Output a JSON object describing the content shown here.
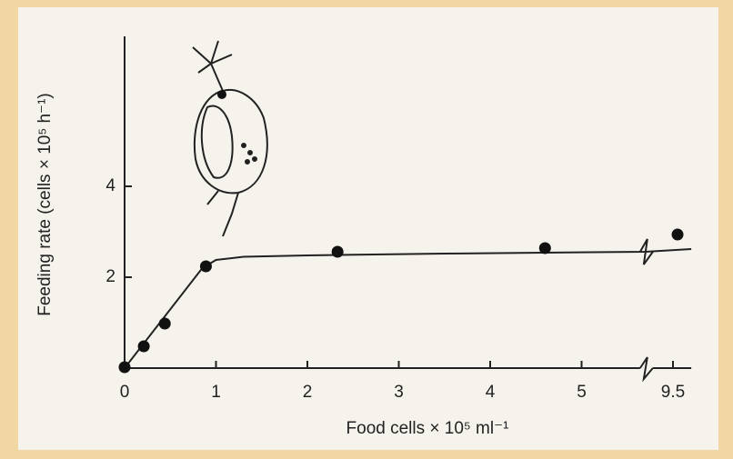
{
  "chart_data": {
    "type": "scatter",
    "x_label": "Food cells × 10⁵ ml⁻¹",
    "y_label": "Feeding rate (cells × 10⁵ h⁻¹)",
    "x": [
      0,
      0.21,
      0.44,
      0.89,
      2.33,
      4.6,
      9.55
    ],
    "values": [
      0.02,
      0.48,
      0.98,
      2.24,
      2.56,
      2.64,
      2.94
    ],
    "color": "#111111",
    "curve": {
      "x": [
        0,
        0.85,
        1.0,
        1.3,
        2.0,
        3.5,
        5.7,
        9.7
      ],
      "y": [
        0,
        2.2,
        2.38,
        2.45,
        2.48,
        2.52,
        2.56,
        2.62
      ]
    },
    "xbreak": [
      5.7,
      9.2
    ],
    "xlim": [
      0,
      9.7
    ],
    "ylim": [
      0,
      7.3
    ],
    "xticks": [
      0,
      1,
      2,
      3,
      4,
      5,
      9.5
    ],
    "yticks": [
      2,
      4
    ],
    "grid": false
  }
}
